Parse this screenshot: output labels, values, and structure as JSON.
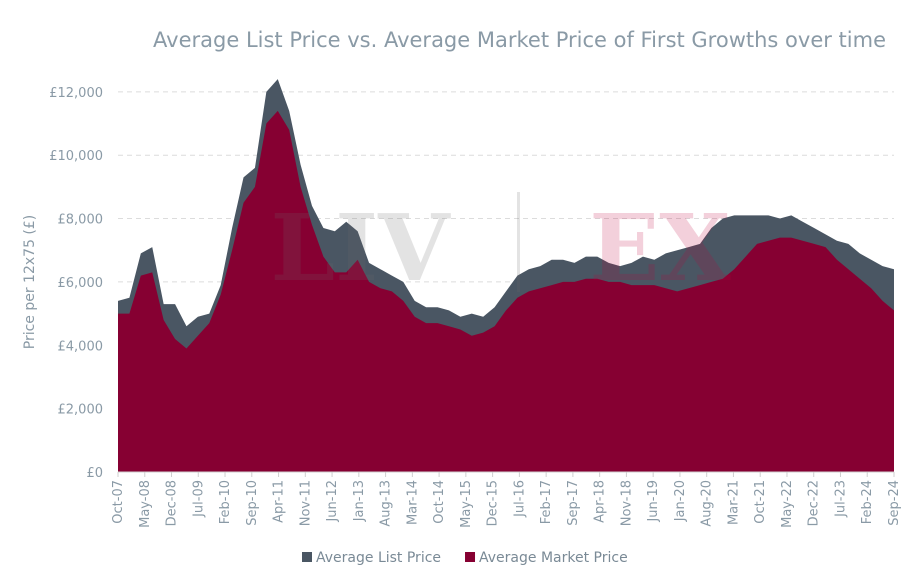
{
  "chart_data": {
    "type": "area",
    "title": "Average List Price vs. Average Market Price of First Growths over time",
    "ylabel": "Price per 12x75 (£)",
    "xlabel": "",
    "ylim": [
      0,
      12500
    ],
    "y_ticks": [
      0,
      2000,
      4000,
      6000,
      8000,
      10000,
      12000
    ],
    "y_tick_labels": [
      "£0",
      "£2,000",
      "£4,000",
      "£6,000",
      "£8,000",
      "£10,000",
      "£12,000"
    ],
    "x_tick_labels": [
      "Oct-07",
      "May-08",
      "Dec-08",
      "Jul-09",
      "Feb-10",
      "Sep-10",
      "Apr-11",
      "Nov-11",
      "Jun-12",
      "Jan-13",
      "Aug-13",
      "Mar-14",
      "Oct-14",
      "May-15",
      "Dec-15",
      "Jul-16",
      "Feb-17",
      "Sep-17",
      "Apr-18",
      "Nov-18",
      "Jun-19",
      "Jan-20",
      "Aug-20",
      "Mar-21",
      "Oct-21",
      "May-22",
      "Dec-22",
      "Jul-23",
      "Feb-24",
      "Sep-24"
    ],
    "grid": "horizontal",
    "legend_position": "bottom",
    "x": [
      "Oct-07",
      "Jan-08",
      "Apr-08",
      "Jul-08",
      "Oct-08",
      "Jan-09",
      "Apr-09",
      "Jul-09",
      "Oct-09",
      "Jan-10",
      "Apr-10",
      "Jul-10",
      "Oct-10",
      "Jan-11",
      "Apr-11",
      "Jul-11",
      "Oct-11",
      "Jan-12",
      "Apr-12",
      "Jul-12",
      "Oct-12",
      "Jan-13",
      "Apr-13",
      "Jul-13",
      "Oct-13",
      "Jan-14",
      "Apr-14",
      "Jul-14",
      "Oct-14",
      "Jan-15",
      "Apr-15",
      "Jul-15",
      "Oct-15",
      "Jan-16",
      "Apr-16",
      "Jul-16",
      "Oct-16",
      "Jan-17",
      "Apr-17",
      "Jul-17",
      "Oct-17",
      "Jan-18",
      "Apr-18",
      "Jul-18",
      "Oct-18",
      "Jan-19",
      "Apr-19",
      "Jul-19",
      "Oct-19",
      "Jan-20",
      "Apr-20",
      "Jul-20",
      "Oct-20",
      "Jan-21",
      "Apr-21",
      "Jul-21",
      "Oct-21",
      "Jan-22",
      "Apr-22",
      "Jul-22",
      "Oct-22",
      "Jan-23",
      "Apr-23",
      "Jul-23",
      "Oct-23",
      "Jan-24",
      "Apr-24",
      "Jul-24",
      "Oct-24"
    ],
    "series": [
      {
        "name": "Average List Price",
        "color": "#4a5663",
        "values": [
          5400,
          5500,
          6900,
          7100,
          5300,
          5300,
          4600,
          4900,
          5000,
          5900,
          7700,
          9300,
          9600,
          12000,
          12400,
          11400,
          9700,
          8400,
          7700,
          7600,
          7900,
          7600,
          6600,
          6400,
          6200,
          6000,
          5400,
          5200,
          5200,
          5100,
          4900,
          5000,
          4900,
          5200,
          5700,
          6200,
          6400,
          6500,
          6700,
          6700,
          6600,
          6800,
          6800,
          6600,
          6500,
          6600,
          6800,
          6700,
          6900,
          7000,
          7100,
          7200,
          7700,
          8000,
          8100,
          8100,
          8100,
          8100,
          8000,
          8100,
          7900,
          7700,
          7500,
          7300,
          7200,
          6900,
          6700,
          6500,
          6400
        ]
      },
      {
        "name": "Average Market Price",
        "color": "#860032",
        "values": [
          5000,
          5000,
          6200,
          6300,
          4800,
          4200,
          3900,
          4300,
          4700,
          5600,
          7000,
          8500,
          9000,
          11000,
          11400,
          10800,
          9000,
          7800,
          6800,
          6300,
          6300,
          6700,
          6000,
          5800,
          5700,
          5400,
          4900,
          4700,
          4700,
          4600,
          4500,
          4300,
          4400,
          4600,
          5100,
          5500,
          5700,
          5800,
          5900,
          6000,
          6000,
          6100,
          6100,
          6000,
          6000,
          5900,
          5900,
          5900,
          5800,
          5700,
          5800,
          5900,
          6000,
          6100,
          6400,
          6800,
          7200,
          7300,
          7400,
          7400,
          7300,
          7200,
          7100,
          6700,
          6400,
          6100,
          5800,
          5400,
          5100
        ]
      }
    ],
    "watermark": "LIV-EX"
  }
}
